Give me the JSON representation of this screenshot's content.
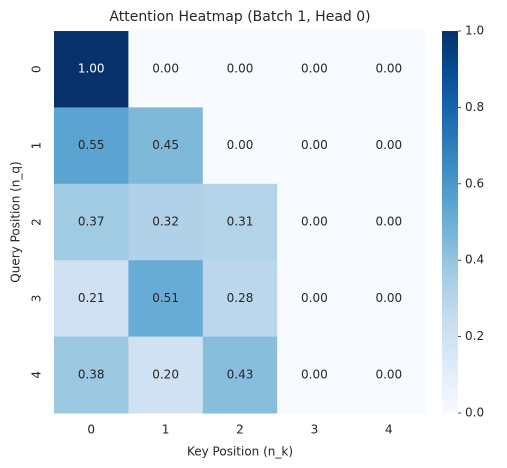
{
  "chart_data": {
    "type": "heatmap",
    "title": "Attention Heatmap (Batch 1, Head 0)",
    "x_label": "Key Position (n_k)",
    "y_label": "Query Position (n_q)",
    "x_categories": [
      "0",
      "1",
      "2",
      "3",
      "4"
    ],
    "y_categories": [
      "0",
      "1",
      "2",
      "3",
      "4"
    ],
    "values": [
      [
        1,
        0,
        0,
        0,
        0
      ],
      [
        0.55,
        0.45,
        0,
        0,
        0
      ],
      [
        0.37,
        0.32,
        0.31,
        0,
        0
      ],
      [
        0.21,
        0.51,
        0.28,
        0,
        0
      ],
      [
        0.38,
        0.2,
        0.43,
        0,
        0
      ]
    ],
    "value_labels": [
      [
        "1.00",
        "0.00",
        "0.00",
        "0.00",
        "0.00"
      ],
      [
        "0.55",
        "0.45",
        "0.00",
        "0.00",
        "0.00"
      ],
      [
        "0.37",
        "0.32",
        "0.31",
        "0.00",
        "0.00"
      ],
      [
        "0.21",
        "0.51",
        "0.28",
        "0.00",
        "0.00"
      ],
      [
        "0.38",
        "0.20",
        "0.43",
        "0.00",
        "0.00"
      ]
    ],
    "colormap": "Blues",
    "clim": [
      0,
      1
    ],
    "cticks": [
      {
        "value": 0,
        "label": "0.0"
      },
      0.2,
      0.4,
      0.6,
      0.8,
      {
        "value": 1,
        "label": "1.0"
      }
    ]
  }
}
